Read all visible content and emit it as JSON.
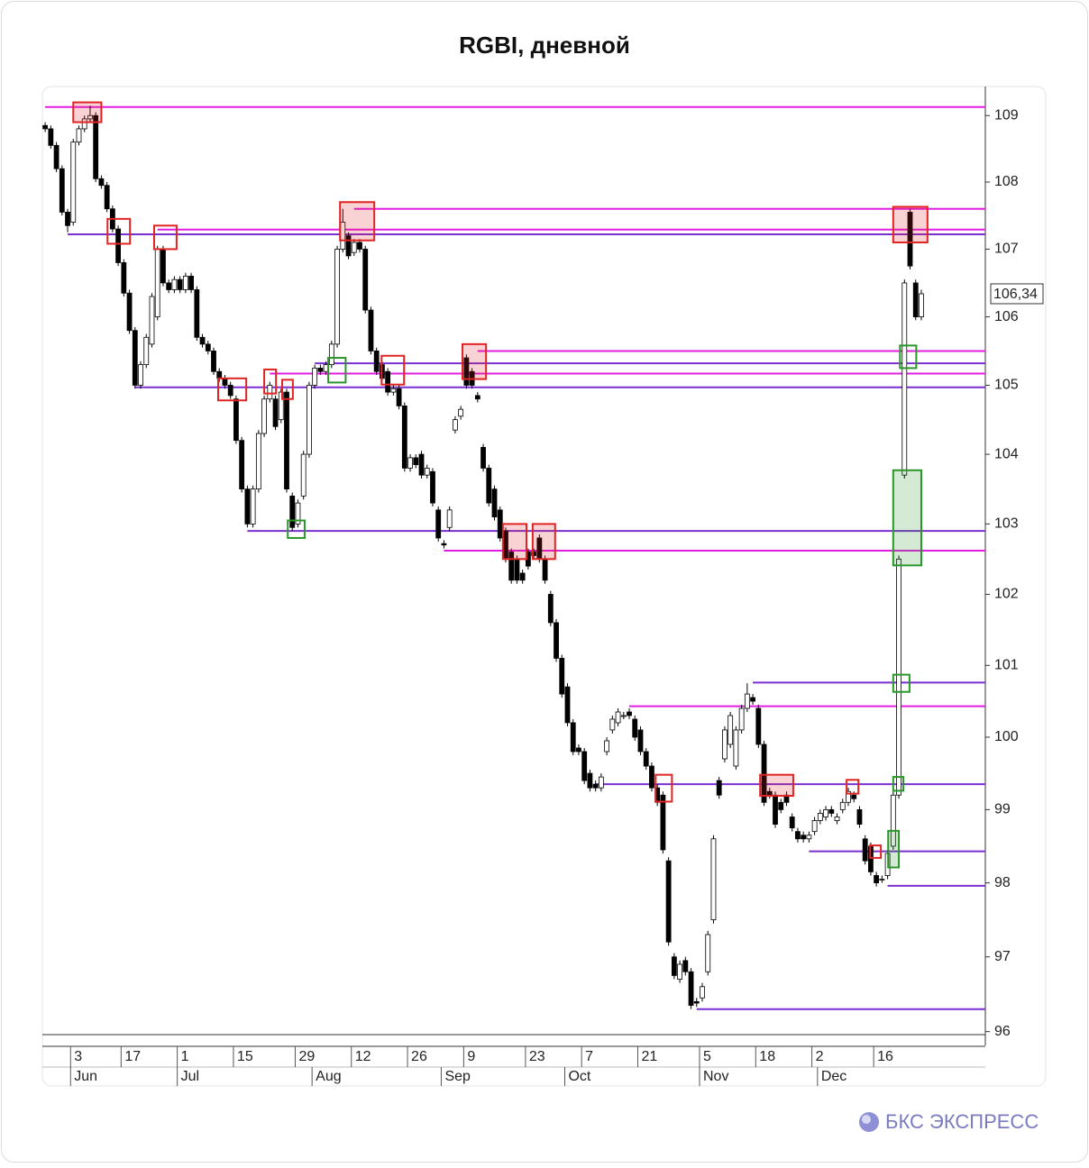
{
  "chart_data": {
    "type": "candlestick",
    "title": "RGBI, дневной",
    "brand": "БКС ЭКСПРЕСС",
    "log_scale": true,
    "ylim": [
      95.96,
      109.44
    ],
    "yticks": [
      96,
      97,
      98,
      99,
      100,
      101,
      102,
      103,
      104,
      105,
      106,
      107,
      108,
      109
    ],
    "xlim": [
      -0.5,
      167.4
    ],
    "xticks": [
      {
        "value": 5,
        "label": "3"
      },
      {
        "value": 14,
        "label": "17"
      },
      {
        "value": 24,
        "label": "1"
      },
      {
        "value": 34,
        "label": "15"
      },
      {
        "value": 45,
        "label": "29"
      },
      {
        "value": 55,
        "label": "12"
      },
      {
        "value": 65,
        "label": "26"
      },
      {
        "value": 75,
        "label": "9"
      },
      {
        "value": 86,
        "label": "23"
      },
      {
        "value": 96,
        "label": "7"
      },
      {
        "value": 106,
        "label": "21"
      },
      {
        "value": 117,
        "label": "5"
      },
      {
        "value": 127,
        "label": "18"
      },
      {
        "value": 137,
        "label": "2"
      },
      {
        "value": 148,
        "label": "16"
      }
    ],
    "month_ticks": [
      {
        "value": 5,
        "label": "Jun"
      },
      {
        "value": 24,
        "label": "Jul"
      },
      {
        "value": 48,
        "label": "Aug"
      },
      {
        "value": 71,
        "label": "Sep"
      },
      {
        "value": 93,
        "label": "Oct"
      },
      {
        "value": 117,
        "label": "Nov"
      },
      {
        "value": 138,
        "label": "Dec"
      }
    ],
    "last_price": {
      "value": 106.34,
      "label": "106,34"
    },
    "x": [
      0,
      1,
      2,
      3,
      4,
      5,
      6,
      7,
      8,
      9,
      10,
      11,
      12,
      13,
      14,
      15,
      16,
      17,
      18,
      19,
      20,
      21,
      22,
      23,
      24,
      25,
      26,
      27,
      28,
      29,
      30,
      31,
      32,
      33,
      34,
      35,
      36,
      37,
      38,
      39,
      40,
      41,
      42,
      43,
      44,
      45,
      46,
      47,
      48,
      49,
      50,
      51,
      52,
      53,
      54,
      55,
      56,
      57,
      58,
      59,
      60,
      61,
      62,
      63,
      64,
      65,
      66,
      67,
      68,
      69,
      70,
      71,
      72,
      73,
      74,
      75,
      76,
      77,
      78,
      79,
      80,
      81,
      82,
      83,
      84,
      85,
      86,
      87,
      88,
      89,
      90,
      91,
      92,
      93,
      94,
      95,
      96,
      97,
      98,
      99,
      100,
      101,
      102,
      103,
      104,
      105,
      106,
      107,
      108,
      109,
      110,
      111,
      112,
      113,
      114,
      115,
      116,
      117,
      118,
      119,
      120,
      121,
      122,
      123,
      124,
      125,
      126,
      127,
      128,
      129,
      130,
      131,
      132,
      133,
      134,
      135,
      136,
      137,
      138,
      139,
      140,
      141,
      142,
      143,
      144,
      145,
      146,
      147,
      148,
      149,
      150,
      151,
      152,
      153,
      154,
      155,
      156
    ],
    "open": [
      108.85,
      108.8,
      108.55,
      108.2,
      107.55,
      107.4,
      108.6,
      108.8,
      108.95,
      109.0,
      108.05,
      107.95,
      107.6,
      107.3,
      106.8,
      106.35,
      105.8,
      105.0,
      105.3,
      105.6,
      106.0,
      107.0,
      106.5,
      106.4,
      106.55,
      106.4,
      106.6,
      106.4,
      105.7,
      105.6,
      105.5,
      105.2,
      105.1,
      105.0,
      104.8,
      104.2,
      103.5,
      103.0,
      103.5,
      104.3,
      104.8,
      104.8,
      104.5,
      104.9,
      103.4,
      103.0,
      103.4,
      104.0,
      105.0,
      105.25,
      105.2,
      105.3,
      105.6,
      107.0,
      107.2,
      106.95,
      107.1,
      107.0,
      106.1,
      105.5,
      105.3,
      105.2,
      104.9,
      104.95,
      104.7,
      103.8,
      103.95,
      104.0,
      103.7,
      103.75,
      103.2,
      102.72,
      102.95,
      104.35,
      104.55,
      105.4,
      105.2,
      104.85,
      104.1,
      103.8,
      103.5,
      103.2,
      102.9,
      102.6,
      102.5,
      102.3,
      102.6,
      102.6,
      102.8,
      102.5,
      102.0,
      101.6,
      101.1,
      100.7,
      100.2,
      99.85,
      99.8,
      99.5,
      99.35,
      99.3,
      99.8,
      100.1,
      100.2,
      100.3,
      100.35,
      100.25,
      100.1,
      99.8,
      99.6,
      99.3,
      99.2,
      98.3,
      97.0,
      96.7,
      96.95,
      96.8,
      96.4,
      96.45,
      96.8,
      97.5,
      99.4,
      99.7,
      99.9,
      99.6,
      100.1,
      100.4,
      100.55,
      100.4,
      99.9,
      99.25,
      99.2,
      99.1,
      99.2,
      98.9,
      98.7,
      98.65,
      98.6,
      98.7,
      98.85,
      98.9,
      99.0,
      98.85,
      99.0,
      99.1,
      99.2,
      99.0,
      98.6,
      98.5,
      98.1,
      98.05,
      98.1,
      98.5,
      99.2,
      103.7,
      107.55,
      106.5,
      106.0
    ],
    "high": [
      108.9,
      108.85,
      108.6,
      108.25,
      107.6,
      108.65,
      108.85,
      109.0,
      109.15,
      109.05,
      108.1,
      108.0,
      107.65,
      107.35,
      106.85,
      106.4,
      105.85,
      105.35,
      105.75,
      106.35,
      107.05,
      107.05,
      106.55,
      106.6,
      106.6,
      106.65,
      106.65,
      106.45,
      105.75,
      105.65,
      105.55,
      105.25,
      105.15,
      105.05,
      104.85,
      104.25,
      103.55,
      103.55,
      104.35,
      104.85,
      105.05,
      104.85,
      104.95,
      104.95,
      103.45,
      103.35,
      104.05,
      105.05,
      105.3,
      105.3,
      105.35,
      105.65,
      107.05,
      107.6,
      107.25,
      107.15,
      107.15,
      107.05,
      106.15,
      105.55,
      105.35,
      105.25,
      105.0,
      105.0,
      104.75,
      104.0,
      104.0,
      104.05,
      103.85,
      103.8,
      103.25,
      102.77,
      103.25,
      104.55,
      104.7,
      105.45,
      105.25,
      104.9,
      104.15,
      103.85,
      103.55,
      103.25,
      102.95,
      102.65,
      102.55,
      102.35,
      102.65,
      102.65,
      102.85,
      102.55,
      102.05,
      101.65,
      101.15,
      100.75,
      100.25,
      99.9,
      99.85,
      99.55,
      99.4,
      99.5,
      100.0,
      100.3,
      100.4,
      100.35,
      100.4,
      100.3,
      100.15,
      99.85,
      99.65,
      99.35,
      99.25,
      98.35,
      97.05,
      96.95,
      97.0,
      96.85,
      96.45,
      96.65,
      97.35,
      98.65,
      99.45,
      100.15,
      100.35,
      100.15,
      100.45,
      100.75,
      100.6,
      100.45,
      99.95,
      99.3,
      99.25,
      99.15,
      99.25,
      98.95,
      98.75,
      98.7,
      98.7,
      98.9,
      99.0,
      99.05,
      99.05,
      98.95,
      99.15,
      99.3,
      99.25,
      99.05,
      98.65,
      98.55,
      98.15,
      98.1,
      98.45,
      99.25,
      102.55,
      106.55,
      107.6,
      106.55,
      106.4
    ],
    "low": [
      108.75,
      108.5,
      108.15,
      107.5,
      107.25,
      107.35,
      108.55,
      108.75,
      108.9,
      108.0,
      107.9,
      107.55,
      107.25,
      106.75,
      106.3,
      105.75,
      104.95,
      104.95,
      105.25,
      105.55,
      105.95,
      106.45,
      106.35,
      106.35,
      106.35,
      106.35,
      106.35,
      105.65,
      105.55,
      105.45,
      105.15,
      105.05,
      104.95,
      104.8,
      104.15,
      103.45,
      102.95,
      102.95,
      103.45,
      104.25,
      104.75,
      104.35,
      104.45,
      103.45,
      102.9,
      102.95,
      103.35,
      103.95,
      104.95,
      105.15,
      105.15,
      105.25,
      105.55,
      106.95,
      106.85,
      106.9,
      106.95,
      106.05,
      105.45,
      105.15,
      105.05,
      104.85,
      104.85,
      104.65,
      103.75,
      103.75,
      103.8,
      103.65,
      103.65,
      103.25,
      102.75,
      102.65,
      102.9,
      104.3,
      104.5,
      104.95,
      104.95,
      104.75,
      103.75,
      103.25,
      103.05,
      102.75,
      102.45,
      102.15,
      102.15,
      102.15,
      102.35,
      102.5,
      102.45,
      102.15,
      101.55,
      101.05,
      100.55,
      100.15,
      99.75,
      99.75,
      99.35,
      99.25,
      99.25,
      99.25,
      99.75,
      100.05,
      100.15,
      100.25,
      100.25,
      99.95,
      99.75,
      99.55,
      99.25,
      99.05,
      98.4,
      97.15,
      96.7,
      96.65,
      96.75,
      96.3,
      96.33,
      96.4,
      96.75,
      97.45,
      99.15,
      99.65,
      99.85,
      99.55,
      100.05,
      100.35,
      100.45,
      99.85,
      99.05,
      99.15,
      98.75,
      98.95,
      99.05,
      98.7,
      98.55,
      98.55,
      98.55,
      98.65,
      98.8,
      98.85,
      98.9,
      98.8,
      98.95,
      99.05,
      99.1,
      98.75,
      98.25,
      98.1,
      97.95,
      98.0,
      98.05,
      98.45,
      99.15,
      103.65,
      106.7,
      105.95,
      105.95
    ],
    "close": [
      108.8,
      108.55,
      108.2,
      107.55,
      107.35,
      108.6,
      108.8,
      108.95,
      109.0,
      108.05,
      107.95,
      107.6,
      107.3,
      106.8,
      106.35,
      105.8,
      105.0,
      105.3,
      105.7,
      106.3,
      107.0,
      106.5,
      106.4,
      106.55,
      106.4,
      106.6,
      106.4,
      105.7,
      105.6,
      105.5,
      105.2,
      105.1,
      105.0,
      104.85,
      104.2,
      103.5,
      103.0,
      103.5,
      104.3,
      104.8,
      105.0,
      104.4,
      104.9,
      103.5,
      102.95,
      103.3,
      104.0,
      105.0,
      105.25,
      105.2,
      105.3,
      105.6,
      107.0,
      107.4,
      106.9,
      107.1,
      107.0,
      106.1,
      105.5,
      105.2,
      105.1,
      104.9,
      104.95,
      104.7,
      103.8,
      103.95,
      103.85,
      103.7,
      103.8,
      103.3,
      102.8,
      102.7,
      103.2,
      104.5,
      104.65,
      105.0,
      105.0,
      104.8,
      103.8,
      103.3,
      103.1,
      102.8,
      102.5,
      102.2,
      102.2,
      102.2,
      102.4,
      102.55,
      102.5,
      102.2,
      101.6,
      101.1,
      100.6,
      100.2,
      99.8,
      99.8,
      99.4,
      99.3,
      99.3,
      99.45,
      99.95,
      100.25,
      100.35,
      100.3,
      100.3,
      100.0,
      99.8,
      99.6,
      99.3,
      99.1,
      98.45,
      97.2,
      96.75,
      96.9,
      96.8,
      96.35,
      96.38,
      96.6,
      97.3,
      98.6,
      99.2,
      100.1,
      100.3,
      100.1,
      100.4,
      100.6,
      100.5,
      99.9,
      99.1,
      99.2,
      98.8,
      99.0,
      99.1,
      98.75,
      98.6,
      98.6,
      98.65,
      98.85,
      98.95,
      99.0,
      98.95,
      98.9,
      99.1,
      99.25,
      99.15,
      98.8,
      98.3,
      98.15,
      98.0,
      98.05,
      98.4,
      99.2,
      102.5,
      106.5,
      106.75,
      106.0,
      106.34
    ],
    "levels": [
      {
        "value": 109.13,
        "from": 0,
        "color": "#e21de2"
      },
      {
        "value": 107.22,
        "from": 4,
        "color": "#7a2fd2"
      },
      {
        "value": 107.29,
        "from": 20,
        "color": "#e21de2"
      },
      {
        "value": 107.6,
        "from": 55,
        "color": "#e21de2"
      },
      {
        "value": 104.97,
        "from": 16,
        "color": "#7a2fd2"
      },
      {
        "value": 105.17,
        "from": 40,
        "color": "#e21de2"
      },
      {
        "value": 105.32,
        "from": 48,
        "color": "#7a2fd2"
      },
      {
        "value": 105.5,
        "from": 77,
        "color": "#e21de2"
      },
      {
        "value": 102.9,
        "from": 36,
        "color": "#7a2fd2"
      },
      {
        "value": 102.62,
        "from": 71,
        "color": "#e21de2"
      },
      {
        "value": 100.43,
        "from": 104,
        "color": "#e21de2"
      },
      {
        "value": 100.76,
        "from": 126,
        "color": "#7a2fd2"
      },
      {
        "value": 99.35,
        "from": 98,
        "color": "#7a2fd2"
      },
      {
        "value": 98.43,
        "from": 136,
        "color": "#7a2fd2"
      },
      {
        "value": 97.96,
        "from": 150,
        "color": "#7a2fd2"
      },
      {
        "value": 96.3,
        "from": 116,
        "color": "#7a2fd2"
      }
    ],
    "zones": [
      {
        "x": [
          5.0,
          10.0
        ],
        "y": [
          108.9,
          109.2
        ],
        "color": "#e02424",
        "filled": true
      },
      {
        "x": [
          11.1,
          15.1
        ],
        "y": [
          107.08,
          107.45
        ],
        "color": "#e02424",
        "filled": false
      },
      {
        "x": [
          19.4,
          23.4
        ],
        "y": [
          107.0,
          107.35
        ],
        "color": "#e02424",
        "filled": false
      },
      {
        "x": [
          52.5,
          58.6
        ],
        "y": [
          107.13,
          107.7
        ],
        "color": "#e02424",
        "filled": true
      },
      {
        "x": [
          30.8,
          35.8
        ],
        "y": [
          104.78,
          105.1
        ],
        "color": "#e02424",
        "filled": false
      },
      {
        "x": [
          39.0,
          41.1
        ],
        "y": [
          104.88,
          105.23
        ],
        "color": "#e02424",
        "filled": false
      },
      {
        "x": [
          42.2,
          44.1
        ],
        "y": [
          104.8,
          105.08
        ],
        "color": "#e02424",
        "filled": false
      },
      {
        "x": [
          50.4,
          53.5
        ],
        "y": [
          105.04,
          105.4
        ],
        "color": "#2a962a",
        "filled": false
      },
      {
        "x": [
          59.9,
          63.9
        ],
        "y": [
          105.01,
          105.43
        ],
        "color": "#e02424",
        "filled": false
      },
      {
        "x": [
          74.3,
          78.5
        ],
        "y": [
          105.09,
          105.6
        ],
        "color": "#e02424",
        "filled": true
      },
      {
        "x": [
          43.2,
          46.2
        ],
        "y": [
          102.8,
          103.05
        ],
        "color": "#2a962a",
        "filled": false
      },
      {
        "x": [
          81.5,
          85.7
        ],
        "y": [
          102.5,
          103.0
        ],
        "color": "#e02424",
        "filled": true
      },
      {
        "x": [
          86.8,
          90.8
        ],
        "y": [
          102.5,
          103.0
        ],
        "color": "#e02424",
        "filled": true
      },
      {
        "x": [
          108.7,
          111.6
        ],
        "y": [
          99.11,
          99.48
        ],
        "color": "#e02424",
        "filled": false
      },
      {
        "x": [
          127.3,
          133.2
        ],
        "y": [
          99.19,
          99.48
        ],
        "color": "#e02424",
        "filled": true
      },
      {
        "x": [
          142.7,
          144.8
        ],
        "y": [
          99.22,
          99.41
        ],
        "color": "#e02424",
        "filled": false
      },
      {
        "x": [
          146.9,
          148.8
        ],
        "y": [
          98.34,
          98.51
        ],
        "color": "#e02424",
        "filled": false
      },
      {
        "x": [
          150.1,
          152.0
        ],
        "y": [
          98.21,
          98.71
        ],
        "color": "#2a962a",
        "filled": true
      },
      {
        "x": [
          151.0,
          152.8
        ],
        "y": [
          99.26,
          99.45
        ],
        "color": "#2a962a",
        "filled": false
      },
      {
        "x": [
          151.0,
          153.9
        ],
        "y": [
          100.63,
          100.87
        ],
        "color": "#2a962a",
        "filled": false
      },
      {
        "x": [
          151.0,
          156.0
        ],
        "y": [
          102.41,
          103.77
        ],
        "color": "#2a962a",
        "filled": true
      },
      {
        "x": [
          152.2,
          155.1
        ],
        "y": [
          105.25,
          105.58
        ],
        "color": "#2a962a",
        "filled": false
      },
      {
        "x": [
          151.0,
          157.1
        ],
        "y": [
          107.1,
          107.63
        ],
        "color": "#e02424",
        "filled": true
      }
    ]
  }
}
